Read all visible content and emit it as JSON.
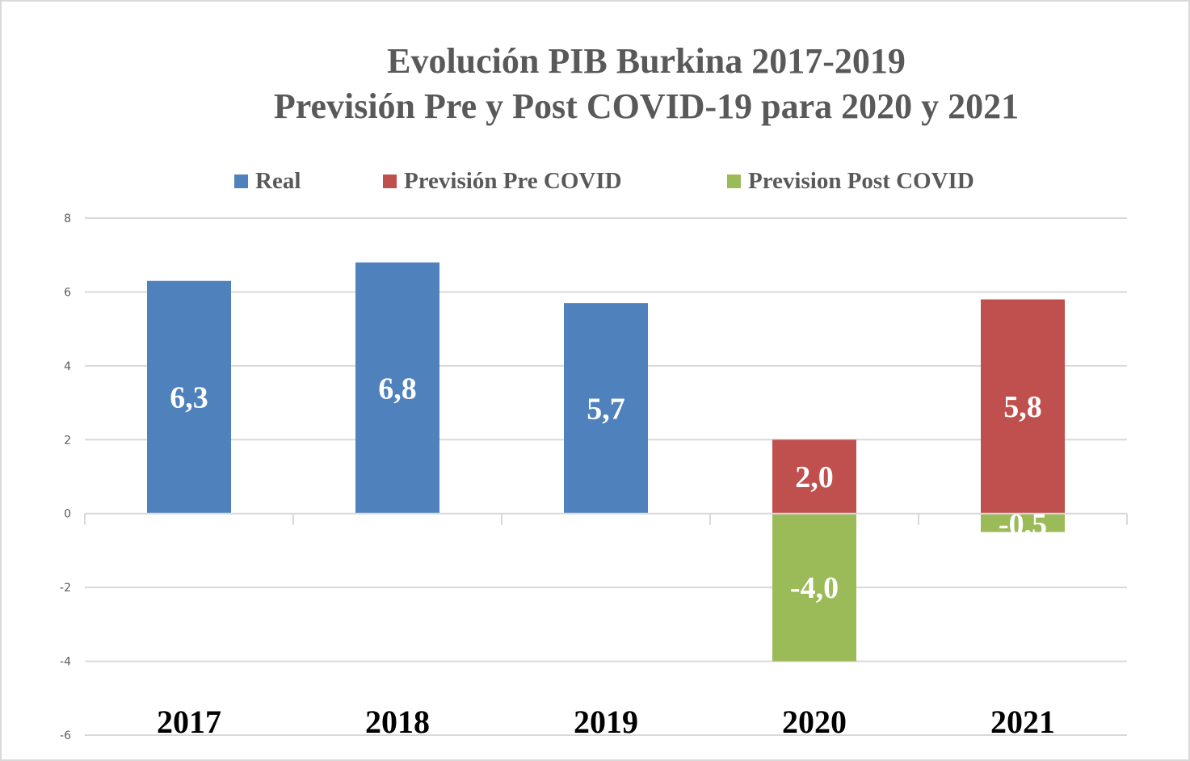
{
  "chart_data": {
    "type": "bar",
    "title": [
      "Evolución PIB Burkina 2017-2019",
      "Previsión Pre y Post COVID-19 para 2020 y 2021"
    ],
    "xlabel": "",
    "ylabel": "",
    "categories": [
      "2017",
      "2018",
      "2019",
      "2020",
      "2021"
    ],
    "ylim": [
      -6,
      8
    ],
    "yticks": [
      8,
      6,
      4,
      2,
      0,
      -2,
      -4,
      -6
    ],
    "grid": true,
    "legend_position": "top",
    "series": [
      {
        "name": "Real",
        "color": "#4f81bd",
        "values": [
          6.3,
          6.8,
          5.7,
          null,
          null
        ],
        "labels": [
          "6,3",
          "6,8",
          "5,7",
          null,
          null
        ]
      },
      {
        "name": "Previsión Pre COVID",
        "color": "#c0504d",
        "values": [
          null,
          null,
          null,
          2.0,
          5.8
        ],
        "labels": [
          null,
          null,
          null,
          "2,0",
          "5,8"
        ]
      },
      {
        "name": "Prevision Post COVID",
        "color": "#9bbb59",
        "values": [
          null,
          null,
          null,
          -4.0,
          -0.5
        ],
        "labels": [
          null,
          null,
          null,
          "-4,0",
          "-0,5"
        ]
      }
    ]
  }
}
